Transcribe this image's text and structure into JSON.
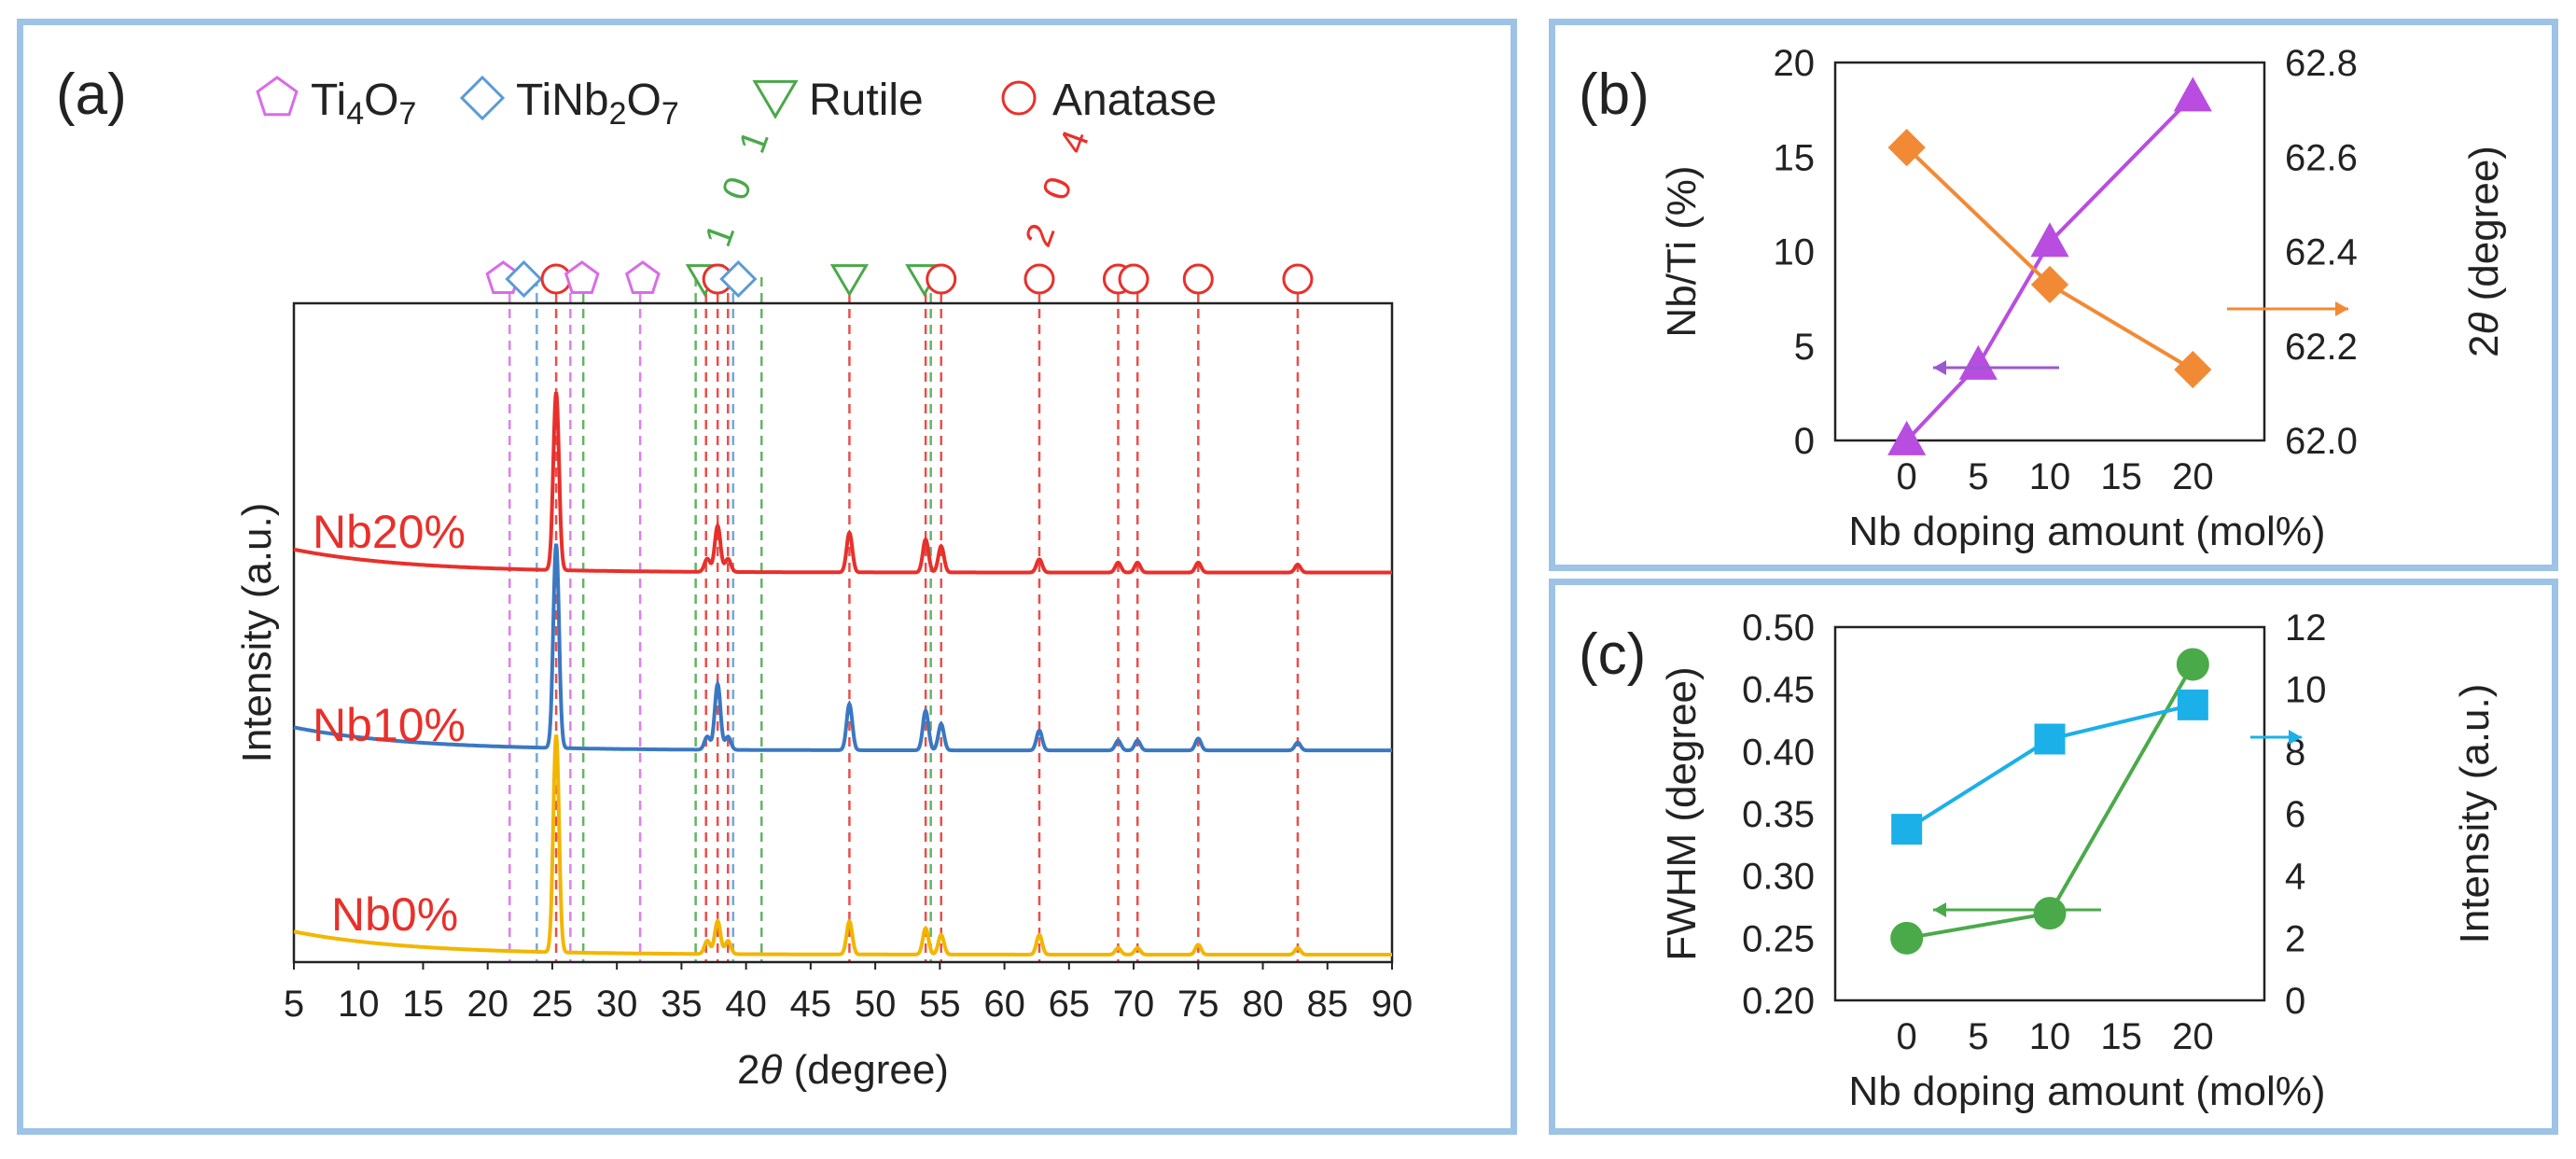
{
  "panels": {
    "a": {
      "label": "(a)",
      "legend": [
        {
          "name": "Ti4O7",
          "text": "Ti",
          "sub1": "4",
          "mid": "O",
          "sub2": "7",
          "marker": "pentagon",
          "color": "#d96be8"
        },
        {
          "name": "TiNb2O7",
          "text": "TiNb",
          "sub1": "2",
          "mid": "O",
          "sub2": "7",
          "marker": "diamond",
          "color": "#5a9bd5"
        },
        {
          "name": "Rutile",
          "text": "Rutile",
          "sub1": "",
          "mid": "",
          "sub2": "",
          "marker": "triangle-down",
          "color": "#4aa84a"
        },
        {
          "name": "Anatase",
          "text": "Anatase",
          "sub1": "",
          "mid": "",
          "sub2": "",
          "marker": "circle",
          "color": "#e8302b"
        }
      ],
      "annotations": {
        "rutile_hkl": "1 0 1",
        "anatase_hkl": "2 0 4"
      },
      "series_labels": [
        "Nb20%",
        "Nb10%",
        "Nb0%"
      ],
      "colors": {
        "Nb20%": "#e8302b",
        "Nb10%": "#3a78c2",
        "Nb0%": "#f2b600",
        "label": "#e8302b"
      }
    },
    "b": {
      "label": "(b)"
    },
    "c": {
      "label": "(c)"
    }
  },
  "chart_data": [
    {
      "id": "a",
      "type": "line",
      "title": "",
      "xlabel_prefix": "2",
      "xlabel_symbol": "θ",
      "xlabel_suffix": " (degree)",
      "ylabel": "Intensity (a.u.)",
      "xlim": [
        5,
        90
      ],
      "xticks": [
        5,
        10,
        15,
        20,
        25,
        30,
        35,
        40,
        45,
        50,
        55,
        60,
        65,
        70,
        75,
        80,
        85,
        90
      ],
      "series": [
        {
          "name": "Nb20%",
          "baseline": 0.58,
          "peaks": [
            [
              25.3,
              0.27
            ],
            [
              37.0,
              0.02
            ],
            [
              37.8,
              0.07
            ],
            [
              38.6,
              0.02
            ],
            [
              48.0,
              0.06
            ],
            [
              53.9,
              0.05
            ],
            [
              55.1,
              0.04
            ],
            [
              62.7,
              0.02
            ],
            [
              68.8,
              0.015
            ],
            [
              70.3,
              0.015
            ],
            [
              75.0,
              0.015
            ],
            [
              82.7,
              0.012
            ]
          ]
        },
        {
          "name": "Nb10%",
          "baseline": 0.31,
          "peaks": [
            [
              25.3,
              0.31
            ],
            [
              37.0,
              0.02
            ],
            [
              37.8,
              0.1
            ],
            [
              38.6,
              0.02
            ],
            [
              48.0,
              0.07
            ],
            [
              53.9,
              0.06
            ],
            [
              55.1,
              0.04
            ],
            [
              62.7,
              0.03
            ],
            [
              68.8,
              0.015
            ],
            [
              70.3,
              0.015
            ],
            [
              75.0,
              0.018
            ],
            [
              82.7,
              0.012
            ]
          ]
        },
        {
          "name": "Nb0%",
          "baseline": 0.0,
          "peaks": [
            [
              25.3,
              0.33
            ],
            [
              37.0,
              0.02
            ],
            [
              37.8,
              0.05
            ],
            [
              38.6,
              0.02
            ],
            [
              48.0,
              0.05
            ],
            [
              53.9,
              0.04
            ],
            [
              55.1,
              0.03
            ],
            [
              62.7,
              0.03
            ],
            [
              68.8,
              0.01
            ],
            [
              70.3,
              0.01
            ],
            [
              75.0,
              0.015
            ],
            [
              82.7,
              0.01
            ]
          ]
        }
      ],
      "reference_lines": [
        {
          "phase": "Ti4O7",
          "positions": [
            21.7,
            26.4,
            31.8
          ]
        },
        {
          "phase": "TiNb2O7",
          "positions": [
            23.8,
            39.0
          ]
        },
        {
          "phase": "Rutile",
          "positions": [
            27.4,
            36.1,
            41.2,
            54.3
          ]
        },
        {
          "phase": "Anatase",
          "positions": [
            25.3,
            36.9,
            37.8,
            38.6,
            48.0,
            53.9,
            55.1,
            62.7,
            68.8,
            70.3,
            75.0,
            82.7
          ]
        }
      ],
      "marker_row": [
        {
          "phase": "Ti4O7",
          "x": 21.2
        },
        {
          "phase": "TiNb2O7",
          "x": 22.8
        },
        {
          "phase": "Anatase",
          "x": 25.3
        },
        {
          "phase": "Ti4O7",
          "x": 27.3
        },
        {
          "phase": "Ti4O7",
          "x": 32.0
        },
        {
          "phase": "Rutile",
          "x": 36.8
        },
        {
          "phase": "Anatase",
          "x": 37.8
        },
        {
          "phase": "TiNb2O7",
          "x": 39.4
        },
        {
          "phase": "Rutile",
          "x": 48.0
        },
        {
          "phase": "Rutile",
          "x": 53.8
        },
        {
          "phase": "Anatase",
          "x": 55.1
        },
        {
          "phase": "Anatase",
          "x": 62.7
        },
        {
          "phase": "Anatase",
          "x": 68.8
        },
        {
          "phase": "Anatase",
          "x": 70.0
        },
        {
          "phase": "Anatase",
          "x": 75.0
        },
        {
          "phase": "Anatase",
          "x": 82.7
        }
      ]
    },
    {
      "id": "b",
      "type": "line",
      "xlabel": "Nb doping amount  (mol%)",
      "ylabel_left": "Nb/Ti (%)",
      "ylabel_right_prefix": "2",
      "ylabel_right_symbol": "θ",
      "ylabel_right_suffix": " (degree)",
      "xlim": [
        -5,
        25
      ],
      "xticks": [
        0,
        5,
        10,
        15,
        20
      ],
      "ylim_left": [
        0,
        20
      ],
      "yticks_left": [
        0,
        5,
        10,
        15,
        20
      ],
      "ylim_right": [
        62.0,
        62.8
      ],
      "yticks_right": [
        "62.0",
        "62.2",
        "62.4",
        "62.6",
        "62.8"
      ],
      "series": [
        {
          "name": "Nb/Ti",
          "axis": "left",
          "color": "#b84de0",
          "marker": "triangle",
          "x": [
            0,
            5,
            10,
            20
          ],
          "y": [
            0,
            4,
            10.5,
            18.2
          ]
        },
        {
          "name": "2theta",
          "axis": "right",
          "color": "#f28a35",
          "marker": "diamond",
          "x": [
            0,
            10,
            20
          ],
          "y": [
            62.62,
            62.33,
            62.15
          ]
        }
      ]
    },
    {
      "id": "c",
      "type": "line",
      "xlabel": "Nb doping amount  (mol%)",
      "ylabel_left": "FWHM (degree)",
      "ylabel_right": "Intensity  (a.u.)",
      "xlim": [
        -5,
        25
      ],
      "xticks": [
        0,
        5,
        10,
        15,
        20
      ],
      "ylim_left": [
        0.2,
        0.5
      ],
      "yticks_left": [
        "0.20",
        "0.25",
        "0.30",
        "0.35",
        "0.40",
        "0.45",
        "0.50"
      ],
      "ylim_right": [
        0,
        12
      ],
      "yticks_right": [
        0,
        2,
        4,
        6,
        8,
        10,
        12
      ],
      "series": [
        {
          "name": "FWHM",
          "axis": "left",
          "color": "#4aaa4a",
          "marker": "circle",
          "x": [
            0,
            10,
            20
          ],
          "y": [
            0.25,
            0.27,
            0.47
          ]
        },
        {
          "name": "Intensity",
          "axis": "right",
          "color": "#1bb0e8",
          "marker": "square",
          "x": [
            0,
            10,
            20
          ],
          "y": [
            5.5,
            8.4,
            9.5
          ]
        }
      ]
    }
  ]
}
